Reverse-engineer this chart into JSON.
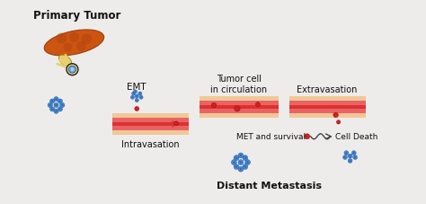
{
  "bg_color": "#eeecea",
  "title_primary_tumor": "Primary Tumor",
  "title_emt": "EMT",
  "title_intravasation": "Intravasation",
  "title_tumor_cell": "Tumor cell\nin circulation",
  "title_extravasation": "Extravasation",
  "title_met": "MET and survival",
  "title_cell_death": "Cell Death",
  "title_distant": "Distant Metastasis",
  "vessel_wall_color": "#f0c898",
  "vessel_mid_color": "#e03030",
  "vessel_pink_color": "#f09090",
  "tumor_fill": "#cc5510",
  "tumor_edge": "#994010",
  "tumor_dark": "#b04010",
  "duct_fill": "#e8d070",
  "duct_edge": "#a89020",
  "cell_blue": "#4488cc",
  "cell_blue2": "#3366aa",
  "cell_blue_edge": "#2255aa",
  "cell_red": "#cc2222",
  "arrow_color": "#444444",
  "text_color": "#111111",
  "label_fontsize": 7,
  "title_fontsize": 8.5,
  "bold_fontsize": 8.0
}
